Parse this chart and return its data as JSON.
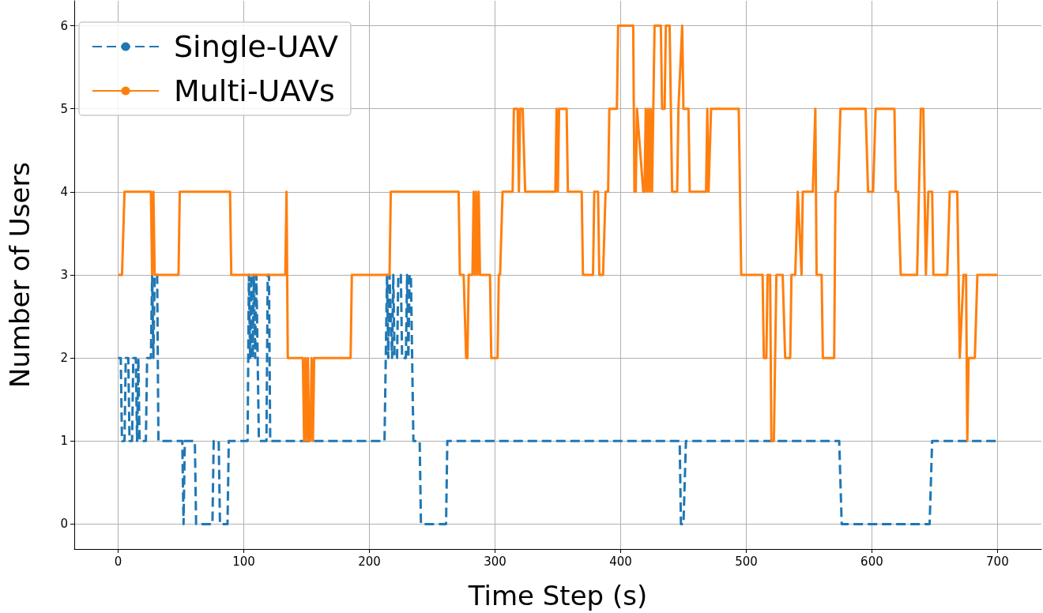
{
  "chart_data": {
    "type": "line",
    "xlabel": "Time Step (s)",
    "ylabel": "Number of Users",
    "xlim": [
      -35,
      735
    ],
    "ylim": [
      -0.3,
      6.3
    ],
    "xticks": [
      0,
      100,
      200,
      300,
      400,
      500,
      600,
      700
    ],
    "yticks": [
      0,
      1,
      2,
      3,
      4,
      5,
      6
    ],
    "grid": true,
    "legend": "top left",
    "marker": "none",
    "series": [
      {
        "name": "Single-UAV",
        "color": "#1f77b4",
        "line_style": "dashed",
        "x": [
          0,
          2,
          3,
          5,
          6,
          8,
          9,
          11,
          12,
          14,
          15,
          16,
          17,
          22,
          23,
          26,
          27,
          28,
          29,
          31,
          32,
          51,
          52,
          53,
          61,
          62,
          75,
          76,
          80,
          81,
          87,
          88,
          103,
          104,
          105,
          106,
          107,
          108,
          109,
          110,
          111,
          112,
          118,
          119,
          120,
          121,
          212,
          213,
          214,
          215,
          216,
          218,
          219,
          220,
          222,
          223,
          225,
          226,
          229,
          230,
          231,
          232,
          233,
          235,
          240,
          241,
          261,
          262,
          447,
          448,
          450,
          452,
          574,
          576,
          646,
          648,
          700
        ],
        "values": [
          2,
          2,
          1,
          1,
          2,
          2,
          1,
          1,
          2,
          2,
          1,
          2,
          1,
          1,
          2,
          2,
          3,
          2,
          3,
          3,
          1,
          1,
          0,
          1,
          1,
          0,
          0,
          1,
          1,
          0,
          0,
          1,
          1,
          3,
          2,
          3,
          2,
          3,
          2,
          3,
          2,
          1,
          1,
          3,
          3,
          1,
          1,
          2,
          3,
          2,
          3,
          2,
          3,
          2,
          2,
          3,
          3,
          2,
          2,
          3,
          2,
          3,
          3,
          1,
          1,
          0,
          0,
          1,
          1,
          0,
          0,
          1,
          1,
          0,
          0,
          1,
          1
        ]
      },
      {
        "name": "Multi-UAVs",
        "color": "#ff7f0e",
        "line_style": "solid",
        "x": [
          0,
          3,
          5,
          26,
          27,
          28,
          29,
          30,
          48,
          49,
          89,
          90,
          133,
          134,
          135,
          147,
          148,
          149,
          150,
          151,
          152,
          153,
          154,
          155,
          156,
          185,
          186,
          216,
          217,
          271,
          272,
          275,
          277,
          278,
          279,
          282,
          283,
          284,
          285,
          286,
          287,
          288,
          296,
          297,
          302,
          303,
          304,
          306,
          314,
          315,
          318,
          319,
          320,
          322,
          324,
          348,
          349,
          350,
          351,
          357,
          358,
          369,
          370,
          378,
          379,
          382,
          383,
          386,
          388,
          390,
          391,
          397,
          398,
          410,
          411,
          412,
          413,
          418,
          419,
          420,
          421,
          422,
          423,
          424,
          425,
          427,
          432,
          433,
          435,
          436,
          439,
          441,
          445,
          446,
          449,
          450,
          454,
          455,
          468,
          469,
          470,
          472,
          494,
          496,
          513,
          514,
          516,
          517,
          519,
          520,
          522,
          524,
          529,
          531,
          535,
          536,
          539,
          541,
          544,
          545,
          553,
          555,
          556,
          560,
          561,
          570,
          571,
          573,
          575,
          595,
          597,
          601,
          603,
          618,
          619,
          621,
          623,
          636,
          639,
          641,
          643,
          645,
          648,
          649,
          660,
          662,
          668,
          669,
          670,
          673,
          675,
          676,
          677,
          682,
          684,
          700
        ],
        "values": [
          3,
          3,
          4,
          4,
          3,
          4,
          3,
          3,
          3,
          4,
          4,
          3,
          3,
          4,
          2,
          2,
          1,
          2,
          1,
          2,
          1,
          1,
          2,
          1,
          2,
          2,
          3,
          3,
          4,
          4,
          3,
          3,
          2,
          2,
          3,
          3,
          4,
          3,
          4,
          3,
          4,
          3,
          3,
          2,
          2,
          3,
          3,
          4,
          4,
          5,
          5,
          4,
          5,
          5,
          4,
          4,
          5,
          4,
          5,
          5,
          4,
          4,
          3,
          3,
          4,
          4,
          3,
          3,
          4,
          4,
          5,
          5,
          6,
          6,
          4,
          4,
          5,
          4,
          4,
          5,
          4,
          5,
          4,
          5,
          4,
          6,
          6,
          5,
          5,
          6,
          6,
          4,
          4,
          5,
          6,
          5,
          5,
          4,
          4,
          5,
          4,
          5,
          5,
          3,
          3,
          2,
          2,
          3,
          3,
          1,
          1,
          3,
          3,
          2,
          2,
          3,
          3,
          4,
          3,
          4,
          4,
          5,
          3,
          3,
          2,
          2,
          4,
          4,
          5,
          5,
          4,
          4,
          5,
          5,
          4,
          4,
          3,
          3,
          5,
          5,
          3,
          4,
          4,
          3,
          3,
          4,
          4,
          3,
          2,
          3,
          3,
          1,
          2,
          2,
          3,
          3
        ]
      }
    ]
  }
}
